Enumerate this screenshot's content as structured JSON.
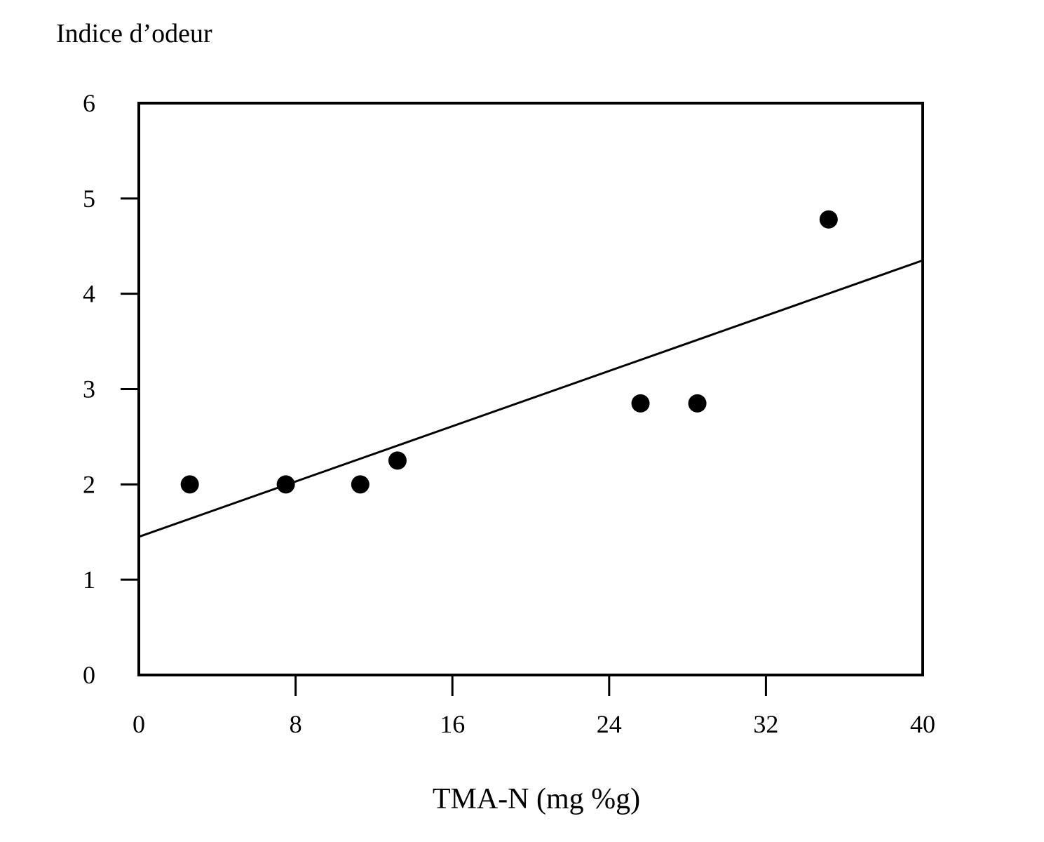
{
  "chart_data": {
    "type": "scatter",
    "ylabel": "Indice d’odeur",
    "xlabel": "TMA-N (mg %g)",
    "xlim": [
      0,
      40
    ],
    "ylim": [
      0,
      6
    ],
    "x_ticks": [
      0,
      8,
      16,
      24,
      32,
      40
    ],
    "x_tick_labels": [
      "0",
      "8",
      "16",
      "24",
      "32",
      "40"
    ],
    "y_ticks": [
      0,
      1,
      2,
      3,
      4,
      5,
      6
    ],
    "y_tick_labels": [
      "0",
      "1",
      "2",
      "3",
      "4",
      "5",
      "6"
    ],
    "grid": false,
    "legend": "none",
    "series": [
      {
        "type": "scatter",
        "points": [
          {
            "x": 2.6,
            "y": 2.0
          },
          {
            "x": 7.5,
            "y": 2.0
          },
          {
            "x": 11.3,
            "y": 2.0
          },
          {
            "x": 13.2,
            "y": 2.25
          },
          {
            "x": 25.6,
            "y": 2.85
          },
          {
            "x": 28.5,
            "y": 2.85
          },
          {
            "x": 35.2,
            "y": 4.78
          }
        ]
      },
      {
        "type": "line",
        "points": [
          {
            "x": 0,
            "y": 1.45
          },
          {
            "x": 40,
            "y": 4.35
          }
        ]
      }
    ],
    "colors": {
      "ink": "#000000",
      "background": "#ffffff"
    }
  }
}
